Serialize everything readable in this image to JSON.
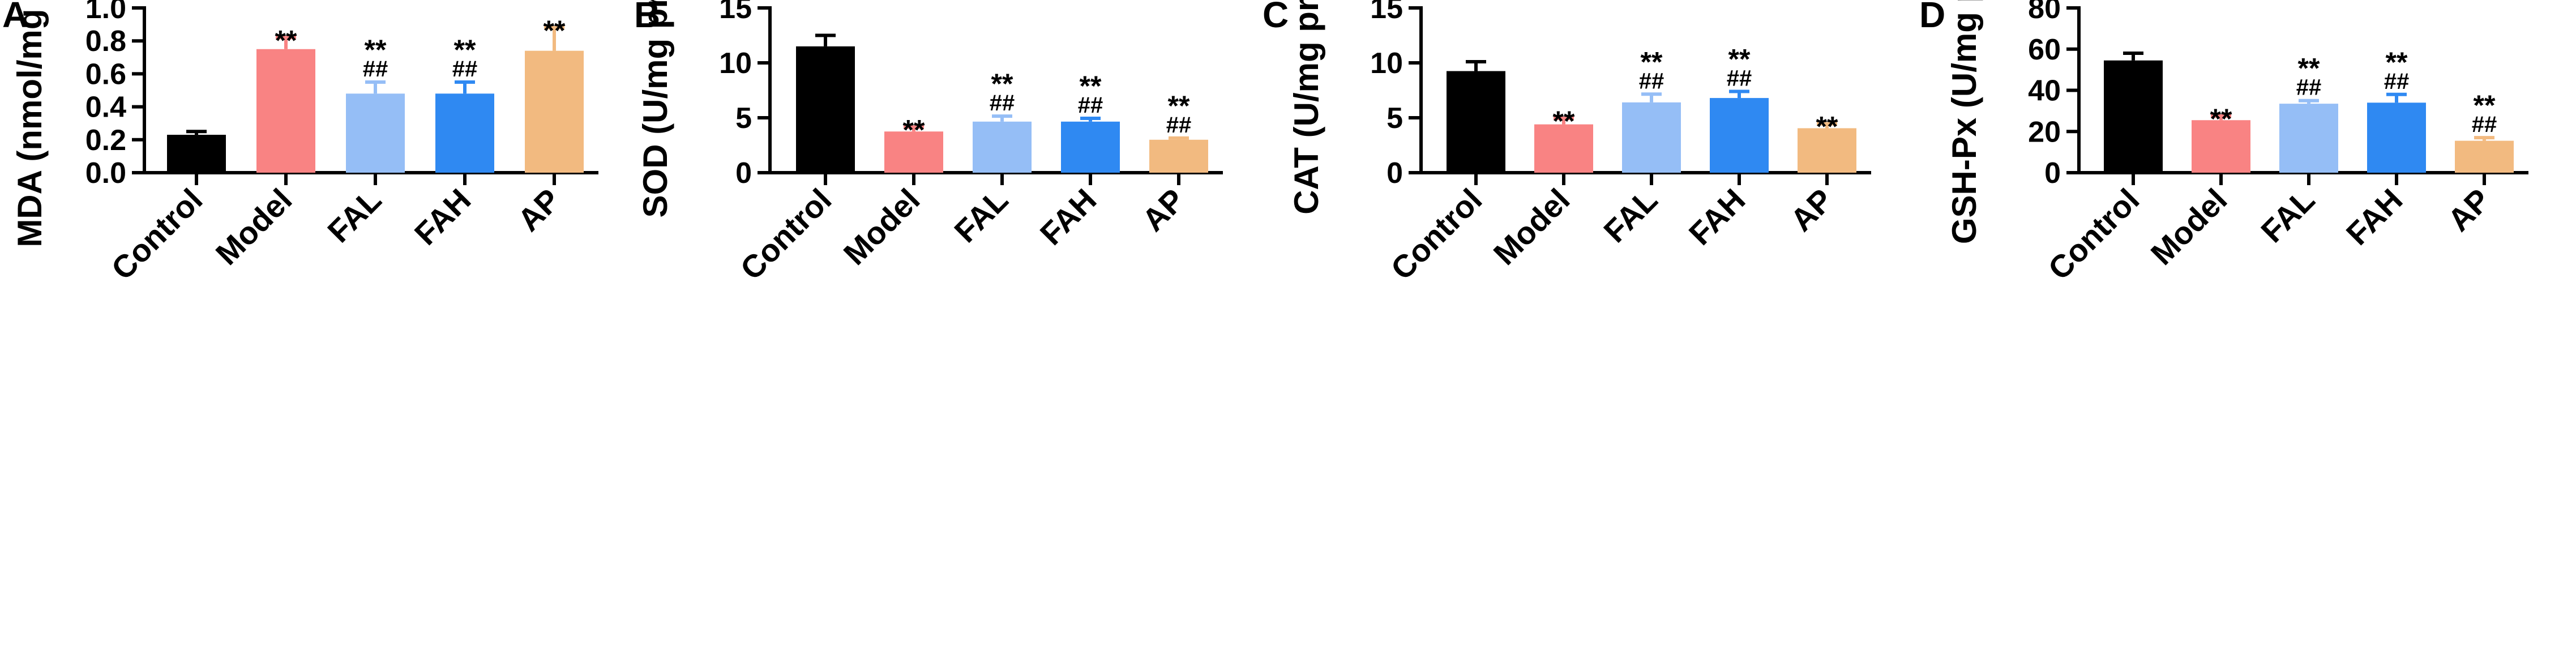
{
  "chart_data": [
    {
      "type": "bar",
      "panel": "A",
      "ylabel": "MDA (nmol/mg pro)",
      "ylim": [
        0,
        1.0
      ],
      "yticks": [
        "0.0",
        "0.2",
        "0.4",
        "0.6",
        "0.8",
        "1.0"
      ],
      "categories": [
        "Control",
        "Model",
        "FAL",
        "FAH",
        "AP"
      ],
      "values": [
        0.23,
        0.75,
        0.48,
        0.48,
        0.74
      ],
      "errors": [
        0.02,
        0.07,
        0.07,
        0.07,
        0.14
      ],
      "sig1": [
        "",
        "**",
        "**",
        "**",
        "**"
      ],
      "sig2": [
        "",
        "",
        "##",
        "##",
        ""
      ],
      "colors": [
        "#000000",
        "#F98383",
        "#95BEF6",
        "#2F89F2",
        "#F2BA80"
      ]
    },
    {
      "type": "bar",
      "panel": "B",
      "ylabel": "SOD (U/mg pro)",
      "ylim": [
        0,
        15
      ],
      "yticks": [
        "0",
        "5",
        "10",
        "15"
      ],
      "categories": [
        "Control",
        "Model",
        "FAL",
        "FAH",
        "AP"
      ],
      "values": [
        11.5,
        3.75,
        4.65,
        4.65,
        3.0
      ],
      "errors": [
        1.0,
        0.4,
        0.5,
        0.3,
        0.15
      ],
      "sig1": [
        "",
        "**",
        "**",
        "**",
        "**"
      ],
      "sig2": [
        "",
        "",
        "##",
        "##",
        "##"
      ],
      "colors": [
        "#000000",
        "#F98383",
        "#95BEF6",
        "#2F89F2",
        "#F2BA80"
      ]
    },
    {
      "type": "bar",
      "panel": "C",
      "ylabel": "CAT (U/mg pro)",
      "ylim": [
        0,
        15
      ],
      "yticks": [
        "0",
        "5",
        "10",
        "15"
      ],
      "categories": [
        "Control",
        "Model",
        "FAL",
        "FAH",
        "AP"
      ],
      "values": [
        9.25,
        4.4,
        6.4,
        6.8,
        4.05
      ],
      "errors": [
        0.85,
        0.55,
        0.75,
        0.6,
        0.4
      ],
      "sig1": [
        "",
        "**",
        "**",
        "**",
        "**"
      ],
      "sig2": [
        "",
        "",
        "##",
        "##",
        ""
      ],
      "colors": [
        "#000000",
        "#F98383",
        "#95BEF6",
        "#2F89F2",
        "#F2BA80"
      ]
    },
    {
      "type": "bar",
      "panel": "D",
      "ylabel": "GSH-Px (U/mg pro)",
      "ylim": [
        0,
        80
      ],
      "yticks": [
        "0",
        "20",
        "40",
        "60",
        "80"
      ],
      "categories": [
        "Control",
        "Model",
        "FAL",
        "FAH",
        "AP"
      ],
      "values": [
        54.5,
        25.5,
        33.5,
        34.0,
        15.5
      ],
      "errors": [
        3.5,
        2.0,
        1.5,
        4.0,
        1.5
      ],
      "sig1": [
        "",
        "**",
        "**",
        "**",
        "**"
      ],
      "sig2": [
        "",
        "",
        "##",
        "##",
        "##"
      ],
      "colors": [
        "#000000",
        "#F98383",
        "#95BEF6",
        "#2F89F2",
        "#F2BA80"
      ]
    }
  ]
}
